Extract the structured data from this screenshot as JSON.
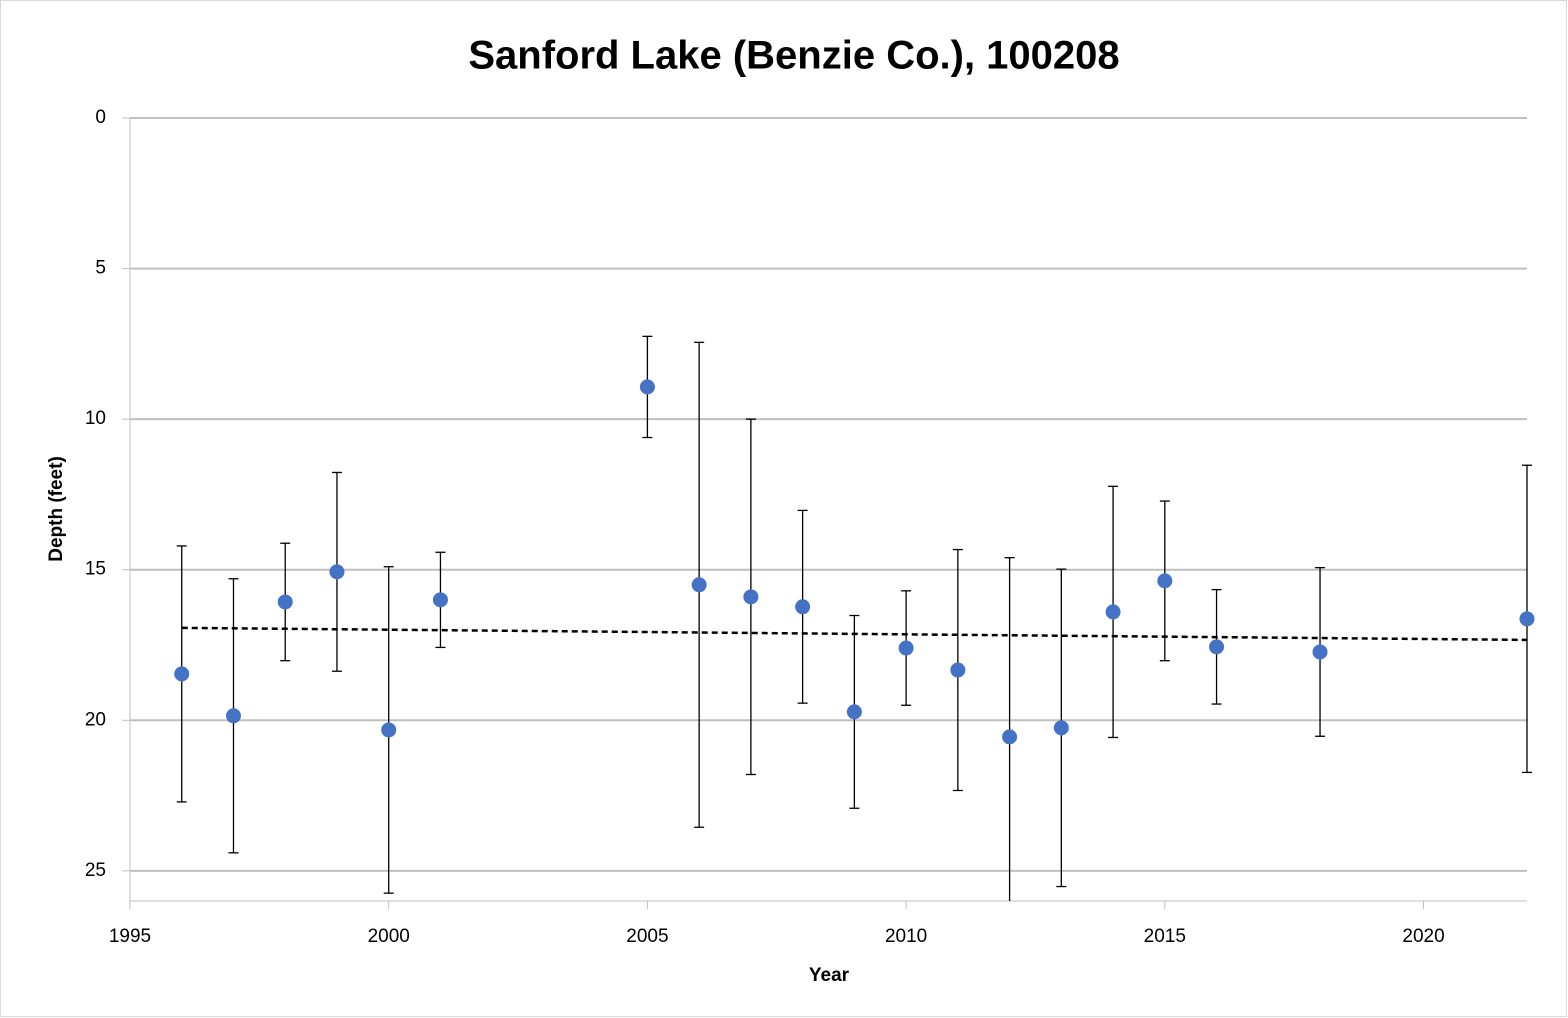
{
  "chart_data": {
    "type": "scatter",
    "title": "Sanford Lake (Benzie Co.), 100208",
    "x_label": "Year",
    "y_label": "Depth (feet)",
    "xlim": [
      1995,
      2022
    ],
    "xticks": [
      1995,
      2000,
      2005,
      2010,
      2015,
      2020
    ],
    "ylim": [
      0,
      26
    ],
    "yticks": [
      0,
      5,
      10,
      15,
      20,
      25
    ],
    "y_inverted": true,
    "grid": true,
    "series": [
      {
        "color": "#4472c4",
        "x": [
          1996,
          1997,
          1998,
          1999,
          2000,
          2001,
          2005,
          2006,
          2007,
          2008,
          2009,
          2010,
          2011,
          2012,
          2013,
          2014,
          2015,
          2016,
          2018,
          2022
        ],
        "values": [
          18.46,
          19.85,
          16.07,
          15.07,
          20.32,
          16.0,
          8.93,
          15.5,
          15.9,
          16.23,
          19.72,
          17.6,
          18.33,
          20.55,
          20.25,
          16.4,
          15.37,
          17.56,
          17.73,
          16.63
        ],
        "errors": [
          4.25,
          4.55,
          1.95,
          3.3,
          5.42,
          1.58,
          1.68,
          8.05,
          5.9,
          3.2,
          3.2,
          1.9,
          4.0,
          5.95,
          5.27,
          4.17,
          2.65,
          1.9,
          2.8,
          5.1
        ]
      }
    ],
    "trendline": {
      "color": "#000000",
      "x": [
        1996,
        2022
      ],
      "values": [
        16.93,
        17.33
      ]
    }
  }
}
